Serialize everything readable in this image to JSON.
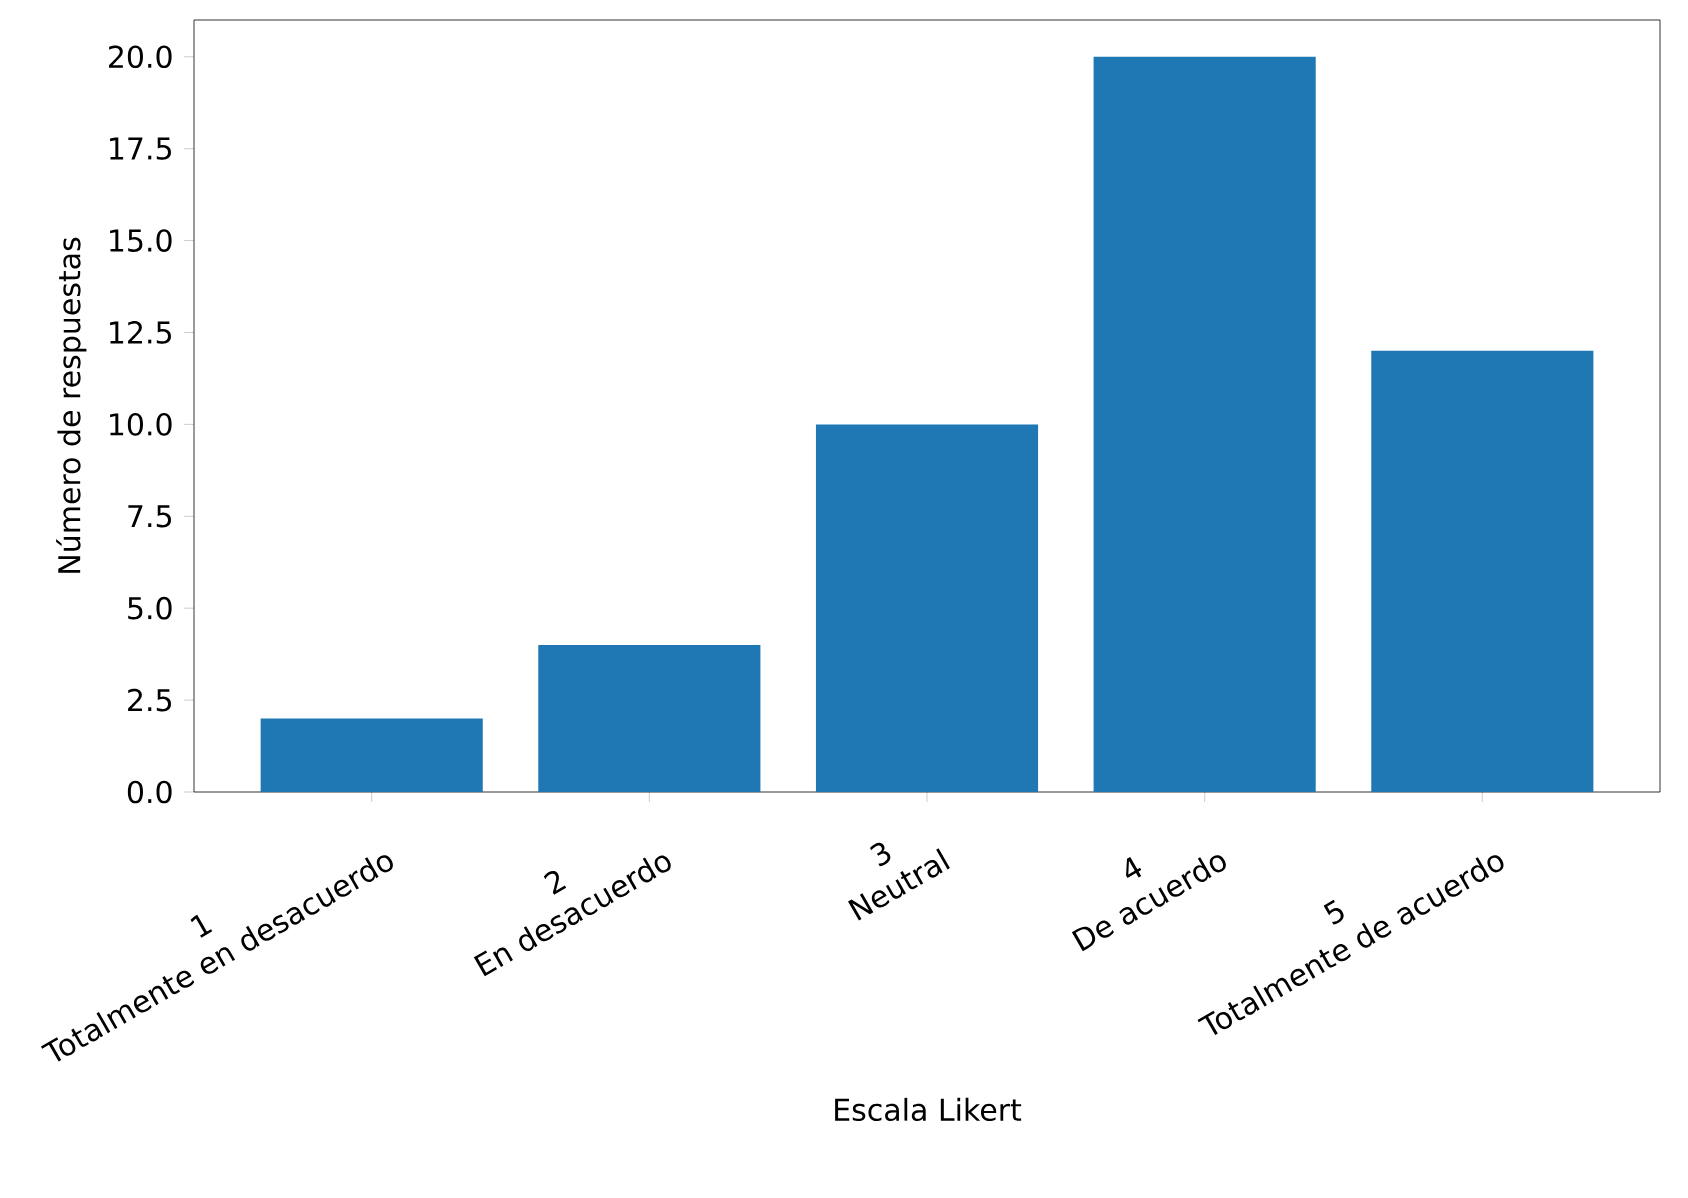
{
  "chart_data": {
    "type": "bar",
    "xlabel": "Escala Likert",
    "ylabel": "Número de respuestas",
    "categories": [
      "1\nTotalmente en desacuerdo",
      "2\nEn desacuerdo",
      "3\nNeutral",
      "4\nDe acuerdo",
      "5\nTotalmente de acuerdo"
    ],
    "values": [
      2,
      4,
      10,
      20,
      12
    ],
    "color": "#1f77b4",
    "ylim": [
      0,
      21
    ],
    "yticks": [
      {
        "value": 0,
        "label": "0.0"
      },
      {
        "value": 2.5,
        "label": "2.5"
      },
      {
        "value": 5,
        "label": "5.0"
      },
      {
        "value": 7.5,
        "label": "7.5"
      },
      {
        "value": 10,
        "label": "10.0"
      },
      {
        "value": 12.5,
        "label": "12.5"
      },
      {
        "value": 15,
        "label": "15.0"
      },
      {
        "value": 17.5,
        "label": "17.5"
      },
      {
        "value": 20,
        "label": "20.0"
      }
    ],
    "tick_labels": "xy"
  }
}
